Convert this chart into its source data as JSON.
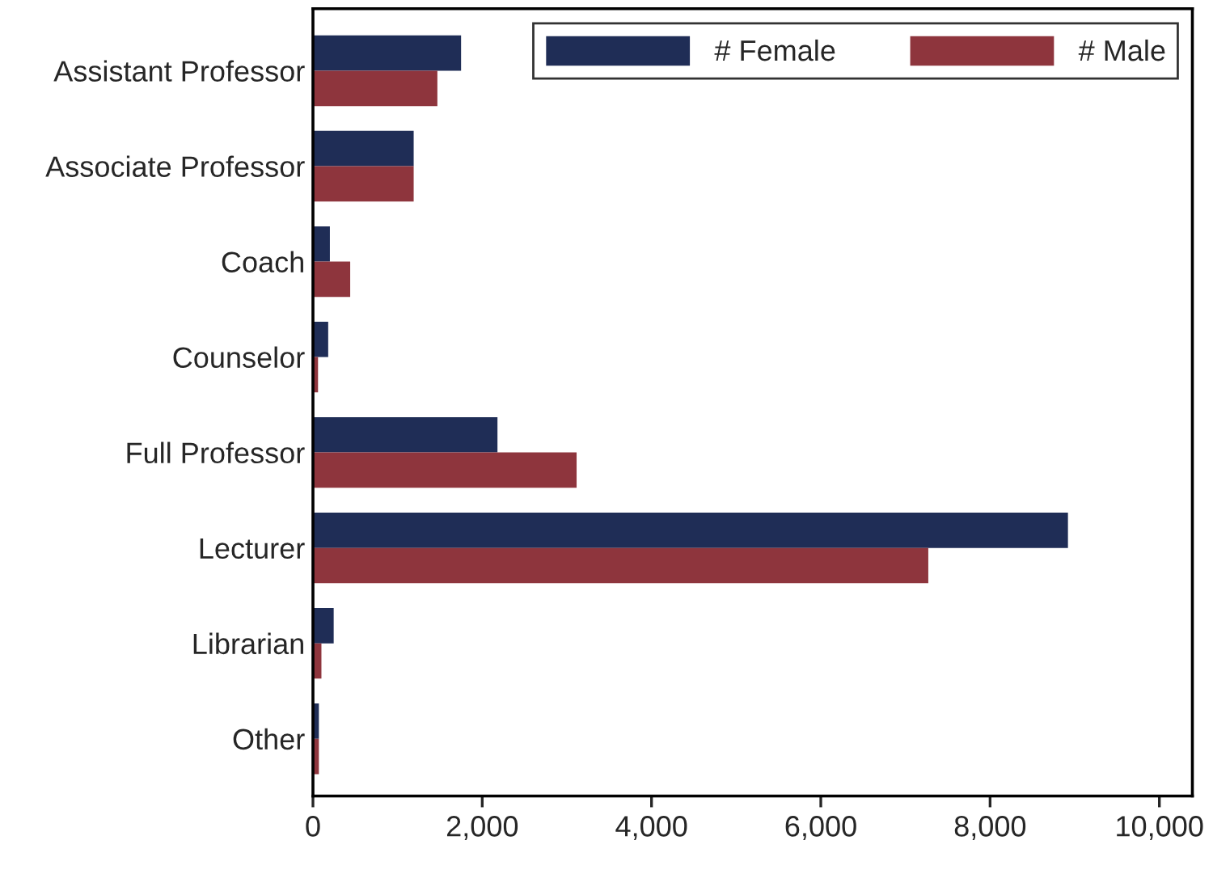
{
  "chart_data": {
    "type": "bar",
    "orientation": "horizontal",
    "categories": [
      "Assistant Professor",
      "Associate Professor",
      "Coach",
      "Counselor",
      "Full Professor",
      "Lecturer",
      "Librarian",
      "Other"
    ],
    "series": [
      {
        "name": "# Female",
        "color": "#1f2d56",
        "values": [
          1750,
          1190,
          200,
          180,
          2180,
          8920,
          245,
          70
        ]
      },
      {
        "name": "# Male",
        "color": "#8e353d",
        "values": [
          1470,
          1190,
          440,
          60,
          3115,
          7270,
          100,
          70
        ]
      }
    ],
    "xlim": [
      0,
      10390
    ],
    "xticks": [
      {
        "value": 0,
        "label": "0"
      },
      {
        "value": 2000,
        "label": "2,000"
      },
      {
        "value": 4000,
        "label": "4,000"
      },
      {
        "value": 6000,
        "label": "6,000"
      },
      {
        "value": 8000,
        "label": "8,000"
      },
      {
        "value": 10000,
        "label": "10,000"
      }
    ],
    "legend": "top right",
    "grid": false
  }
}
